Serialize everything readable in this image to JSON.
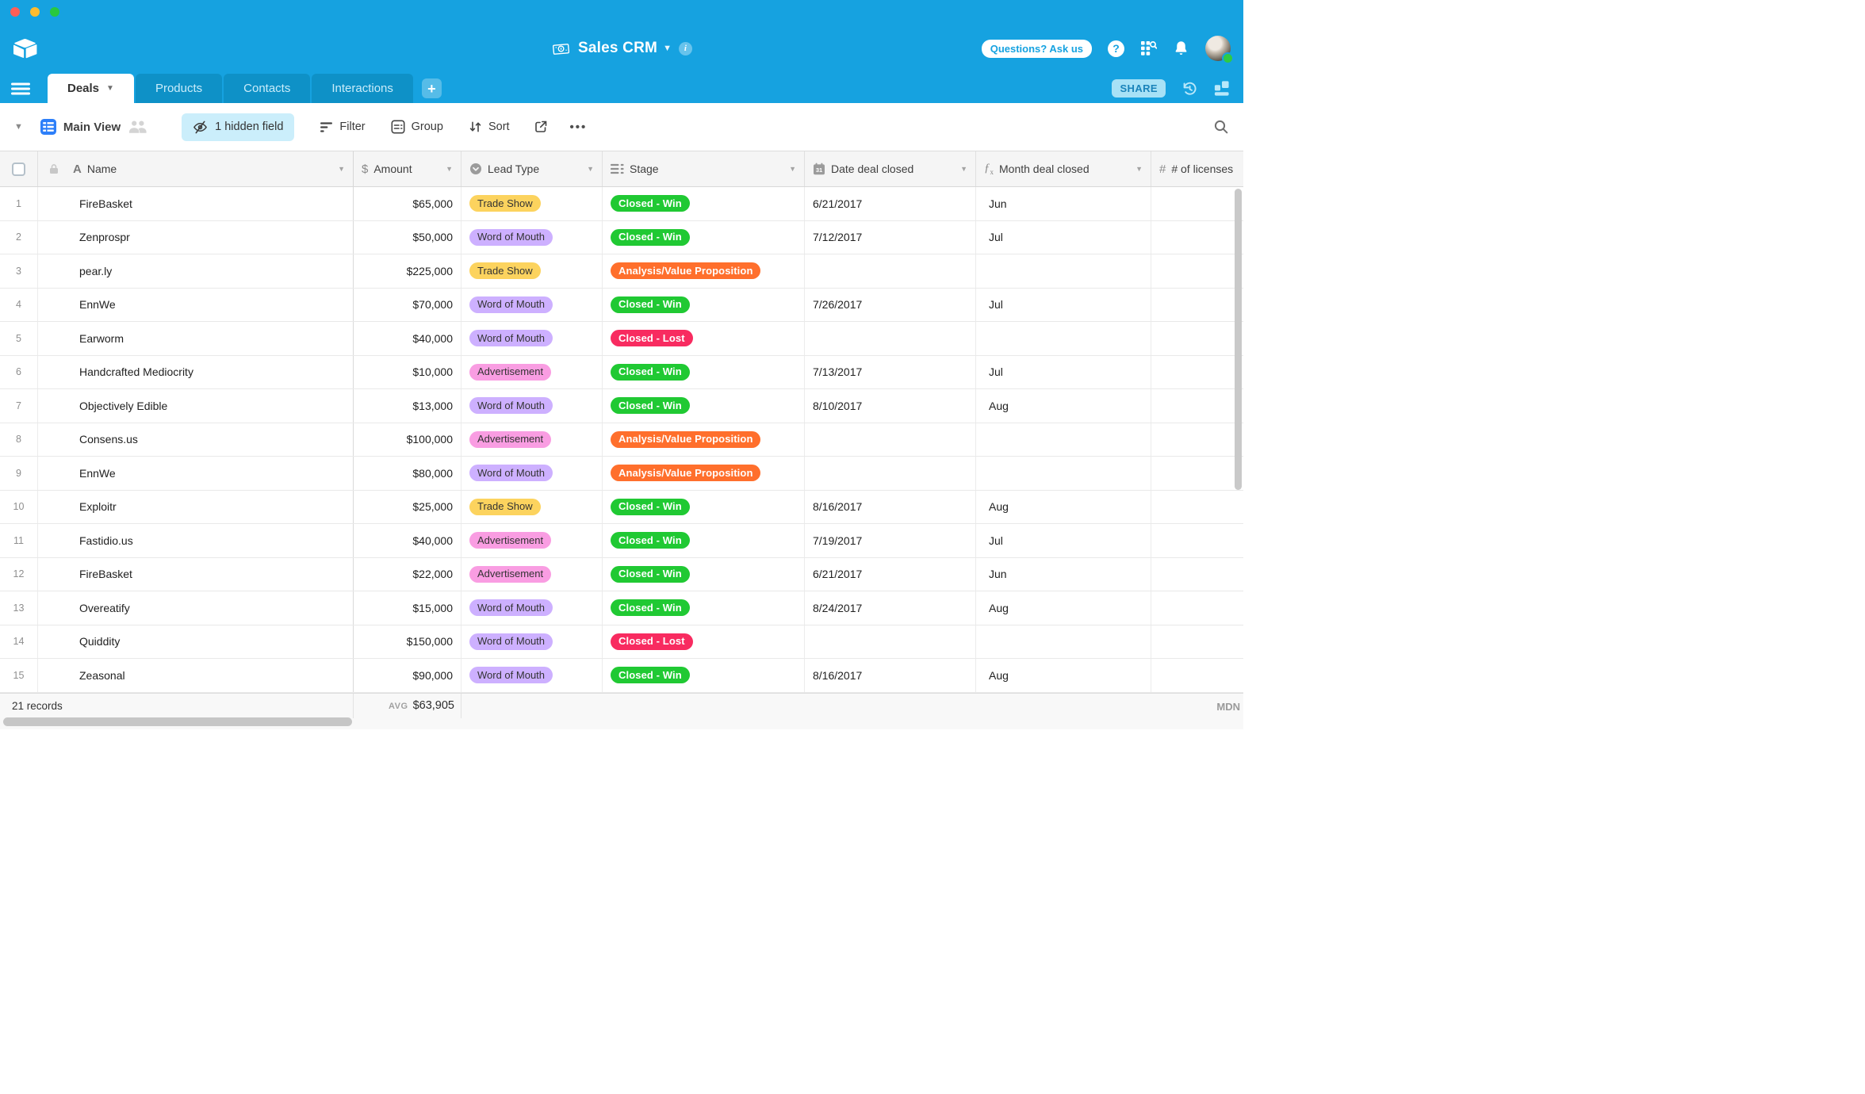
{
  "window": {
    "buttons": [
      "close",
      "minimize",
      "fullscreen"
    ]
  },
  "app_header": {
    "title": "Sales CRM",
    "ask_button": "Questions? Ask us"
  },
  "tabs": {
    "items": [
      {
        "label": "Deals",
        "active": true
      },
      {
        "label": "Products",
        "active": false
      },
      {
        "label": "Contacts",
        "active": false
      },
      {
        "label": "Interactions",
        "active": false
      }
    ],
    "share_button": "SHARE"
  },
  "toolbar": {
    "view_name": "Main View",
    "hidden_fields_button": "1 hidden field",
    "filter_button": "Filter",
    "group_button": "Group",
    "sort_button": "Sort"
  },
  "table": {
    "columns": [
      {
        "label": "Name",
        "type": "text"
      },
      {
        "label": "Amount",
        "type": "currency"
      },
      {
        "label": "Lead Type",
        "type": "single-select"
      },
      {
        "label": "Stage",
        "type": "single-select"
      },
      {
        "label": "Date deal closed",
        "type": "date"
      },
      {
        "label": "Month deal closed",
        "type": "formula"
      },
      {
        "label": "# of licenses",
        "type": "number"
      }
    ],
    "rows": [
      {
        "num": "1",
        "name": "FireBasket",
        "amount": "$65,000",
        "lead": "Trade Show",
        "lead_color": "yellow",
        "stage": "Closed - Win",
        "stage_color": "green",
        "date": "6/21/2017",
        "month": "Jun"
      },
      {
        "num": "2",
        "name": "Zenprospr",
        "amount": "$50,000",
        "lead": "Word of Mouth",
        "lead_color": "purple",
        "stage": "Closed - Win",
        "stage_color": "green",
        "date": "7/12/2017",
        "month": "Jul"
      },
      {
        "num": "3",
        "name": "pear.ly",
        "amount": "$225,000",
        "lead": "Trade Show",
        "lead_color": "yellow",
        "stage": "Analysis/Value Proposition",
        "stage_color": "orange",
        "date": "",
        "month": ""
      },
      {
        "num": "4",
        "name": "EnnWe",
        "amount": "$70,000",
        "lead": "Word of Mouth",
        "lead_color": "purple",
        "stage": "Closed - Win",
        "stage_color": "green",
        "date": "7/26/2017",
        "month": "Jul"
      },
      {
        "num": "5",
        "name": "Earworm",
        "amount": "$40,000",
        "lead": "Word of Mouth",
        "lead_color": "purple",
        "stage": "Closed - Lost",
        "stage_color": "red",
        "date": "",
        "month": ""
      },
      {
        "num": "6",
        "name": "Handcrafted Mediocrity",
        "amount": "$10,000",
        "lead": "Advertisement",
        "lead_color": "pink",
        "stage": "Closed - Win",
        "stage_color": "green",
        "date": "7/13/2017",
        "month": "Jul"
      },
      {
        "num": "7",
        "name": "Objectively Edible",
        "amount": "$13,000",
        "lead": "Word of Mouth",
        "lead_color": "purple",
        "stage": "Closed - Win",
        "stage_color": "green",
        "date": "8/10/2017",
        "month": "Aug"
      },
      {
        "num": "8",
        "name": "Consens.us",
        "amount": "$100,000",
        "lead": "Advertisement",
        "lead_color": "pink",
        "stage": "Analysis/Value Proposition",
        "stage_color": "orange",
        "date": "",
        "month": ""
      },
      {
        "num": "9",
        "name": "EnnWe",
        "amount": "$80,000",
        "lead": "Word of Mouth",
        "lead_color": "purple",
        "stage": "Analysis/Value Proposition",
        "stage_color": "orange",
        "date": "",
        "month": ""
      },
      {
        "num": "10",
        "name": "Exploitr",
        "amount": "$25,000",
        "lead": "Trade Show",
        "lead_color": "yellow",
        "stage": "Closed - Win",
        "stage_color": "green",
        "date": "8/16/2017",
        "month": "Aug"
      },
      {
        "num": "11",
        "name": "Fastidio.us",
        "amount": "$40,000",
        "lead": "Advertisement",
        "lead_color": "pink",
        "stage": "Closed - Win",
        "stage_color": "green",
        "date": "7/19/2017",
        "month": "Jul"
      },
      {
        "num": "12",
        "name": "FireBasket",
        "amount": "$22,000",
        "lead": "Advertisement",
        "lead_color": "pink",
        "stage": "Closed - Win",
        "stage_color": "green",
        "date": "6/21/2017",
        "month": "Jun"
      },
      {
        "num": "13",
        "name": "Overeatify",
        "amount": "$15,000",
        "lead": "Word of Mouth",
        "lead_color": "purple",
        "stage": "Closed - Win",
        "stage_color": "green",
        "date": "8/24/2017",
        "month": "Aug"
      },
      {
        "num": "14",
        "name": "Quiddity",
        "amount": "$150,000",
        "lead": "Word of Mouth",
        "lead_color": "purple",
        "stage": "Closed - Lost",
        "stage_color": "red",
        "date": "",
        "month": ""
      },
      {
        "num": "15",
        "name": "Zeasonal",
        "amount": "$90,000",
        "lead": "Word of Mouth",
        "lead_color": "purple",
        "stage": "Closed - Win",
        "stage_color": "green",
        "date": "8/16/2017",
        "month": "Aug"
      }
    ]
  },
  "palette": {
    "yellow": {
      "bg": "#fcd35e",
      "fg": "#333333",
      "dark": false
    },
    "purple": {
      "bg": "#cdb0ff",
      "fg": "#333333",
      "dark": false
    },
    "pink": {
      "bg": "#f99de2",
      "fg": "#333333",
      "dark": false
    },
    "green": {
      "bg": "#20c933",
      "fg": "#ffffff",
      "dark": true
    },
    "orange": {
      "bg": "#ff6f2c",
      "fg": "#ffffff",
      "dark": true
    },
    "red": {
      "bg": "#f82b60",
      "fg": "#ffffff",
      "dark": true
    }
  },
  "footer": {
    "record_count": "21 records",
    "avg_label": "AVG",
    "avg_value": "$63,905",
    "median_label": "MDN"
  },
  "colors": {
    "chrome_blue": "#16a2e0",
    "inactive_tab": "#0e91c7",
    "view_icon_blue": "#2d7ff9"
  }
}
